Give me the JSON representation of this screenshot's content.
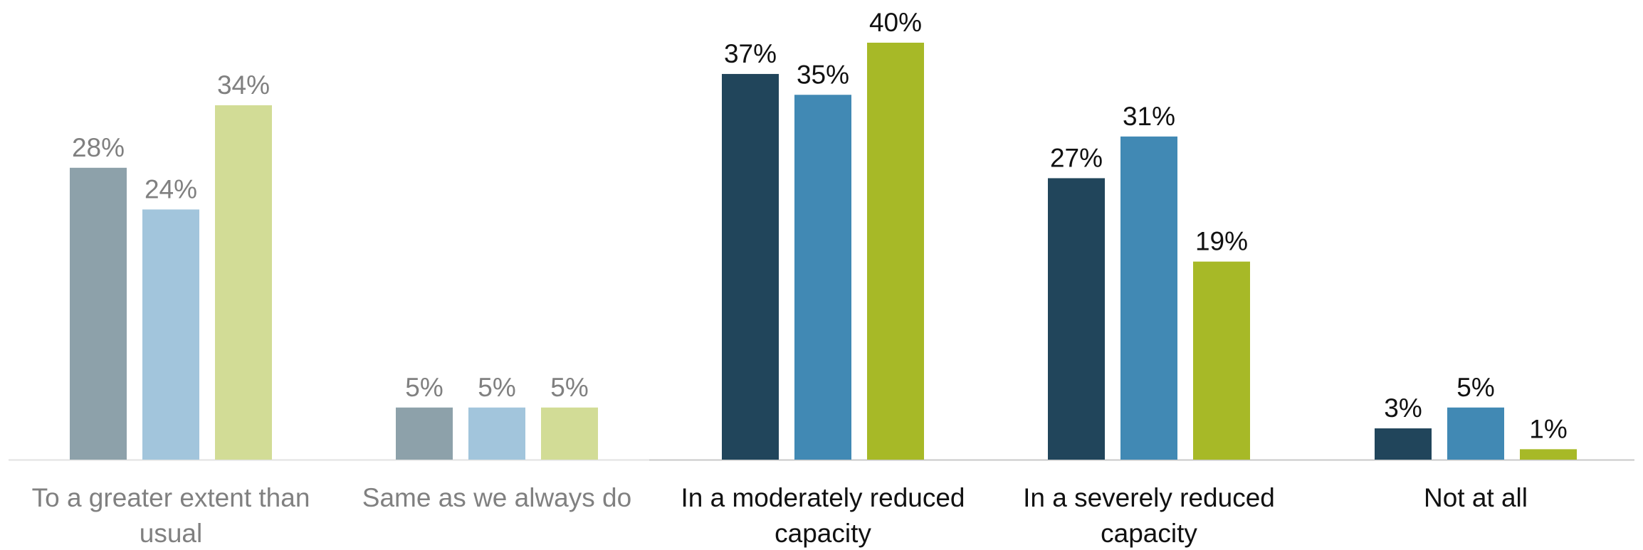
{
  "chart_data": {
    "type": "bar",
    "categories": [
      "To a greater extent than usual",
      "Same as we always do",
      "In a moderately reduced capacity",
      "In a severely reduced capacity",
      "Not at all"
    ],
    "category_label_lines": [
      [
        "To a greater extent than",
        "usual"
      ],
      [
        "Same as we always do"
      ],
      [
        "In a moderately reduced",
        "capacity"
      ],
      [
        "In a severely reduced",
        "capacity"
      ],
      [
        "Not at all"
      ]
    ],
    "series": [
      {
        "values": [
          28,
          5,
          37,
          27,
          3
        ],
        "labels": [
          "28%",
          "5%",
          "37%",
          "27%",
          "3%"
        ]
      },
      {
        "values": [
          24,
          5,
          35,
          31,
          5
        ],
        "labels": [
          "24%",
          "5%",
          "35%",
          "31%",
          "5%"
        ]
      },
      {
        "values": [
          34,
          5,
          40,
          19,
          1
        ],
        "labels": [
          "34%",
          "5%",
          "40%",
          "19%",
          "1%"
        ]
      }
    ],
    "ylim": [
      0,
      42
    ],
    "grid": false,
    "legend": "none",
    "category_emphasis": [
      "muted",
      "muted",
      "full",
      "full",
      "full"
    ],
    "colors": {
      "full": [
        "#21455b",
        "#4189b4",
        "#a7b927"
      ],
      "muted": [
        "#8da1aa",
        "#a2c5dc",
        "#d2dc96"
      ],
      "text_full": "#111111",
      "text_muted": "#808080",
      "axis_muted": "#e2e2e2",
      "axis_full": "#c8c8c8"
    }
  }
}
